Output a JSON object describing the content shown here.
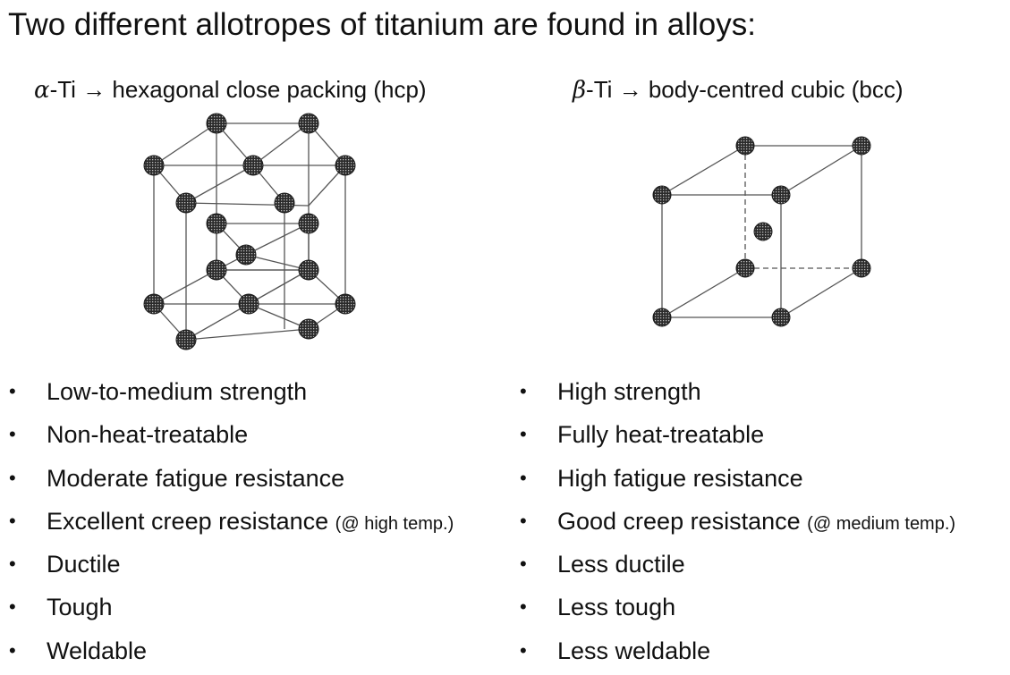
{
  "title": "Two different allotropes of titanium are found in alloys:",
  "alpha": {
    "symbol": "α",
    "label": "-Ti → hexagonal close packing (hcp)",
    "properties": [
      {
        "text": "Low-to-medium strength",
        "note": ""
      },
      {
        "text": "Non-heat-treatable",
        "note": ""
      },
      {
        "text": "Moderate fatigue resistance",
        "note": ""
      },
      {
        "text": "Excellent creep resistance",
        "note": "(@ high temp.)"
      },
      {
        "text": "Ductile",
        "note": ""
      },
      {
        "text": "Tough",
        "note": ""
      },
      {
        "text": "Weldable",
        "note": ""
      }
    ]
  },
  "beta": {
    "symbol": "β",
    "label": "-Ti → body-centred cubic (bcc)",
    "properties": [
      {
        "text": "High strength",
        "note": ""
      },
      {
        "text": "Fully heat-treatable",
        "note": ""
      },
      {
        "text": "High fatigue resistance",
        "note": ""
      },
      {
        "text": "Good creep resistance",
        "note": "(@ medium temp.)"
      },
      {
        "text": "Less ductile",
        "note": ""
      },
      {
        "text": "Less tough",
        "note": ""
      },
      {
        "text": "Less weldable",
        "note": ""
      }
    ]
  },
  "bullet_char": "•",
  "colors": {
    "text": "#111111",
    "atom": "#2a2a2a",
    "line": "#555555"
  }
}
